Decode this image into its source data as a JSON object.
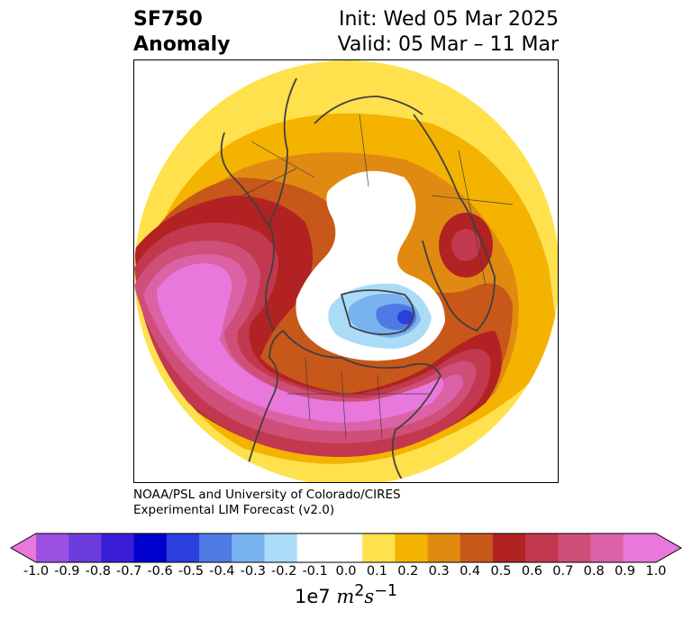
{
  "title": {
    "variable": "SF750",
    "kind": "Anomaly",
    "init": "Init: Wed 05 Mar 2025",
    "valid": "Valid: 05 Mar – 11 Mar"
  },
  "credit": {
    "line1": "NOAA/PSL and University of Colorado/CIRES",
    "line2": "Experimental LIM Forecast (v2.0)"
  },
  "colorbar": {
    "ticks": [
      "-1.0",
      "-0.9",
      "-0.8",
      "-0.7",
      "-0.6",
      "-0.5",
      "-0.4",
      "-0.3",
      "-0.2",
      "-0.1",
      "0.0",
      "0.1",
      "0.2",
      "0.3",
      "0.4",
      "0.5",
      "0.6",
      "0.7",
      "0.8",
      "0.9",
      "1.0"
    ],
    "colors": [
      "#9b4fe3",
      "#6b3ddc",
      "#3a1fd6",
      "#0000cc",
      "#2a3fdc",
      "#4f7ae6",
      "#78b2f0",
      "#aadcf8",
      "#ffffff",
      "#ffffff",
      "#ffe14d",
      "#f3b300",
      "#e08a12",
      "#c8571a",
      "#b22222",
      "#c2384e",
      "#cf4f79",
      "#dc62a8",
      "#e878dc"
    ],
    "under_color": "#e878dc",
    "over_color": "#e878dc",
    "units_prefix": "1e7",
    "units_math": "m",
    "units_sup1": "2",
    "units_s": "s",
    "units_sup2": "−1"
  }
}
